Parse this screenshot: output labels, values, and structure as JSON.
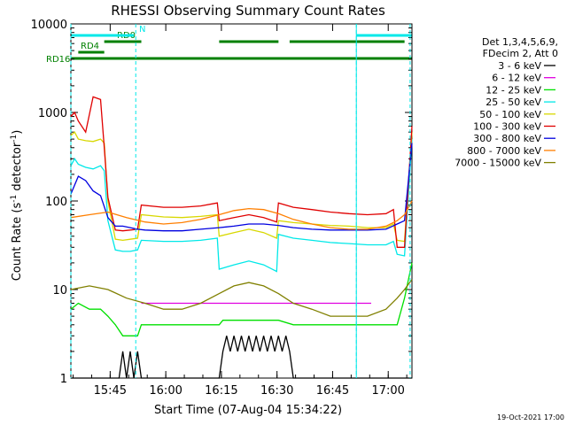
{
  "chart_data": {
    "type": "line",
    "title": "RHESSI Observing Summary Count Rates",
    "xlabel": "Start Time (07-Aug-04 15:34:22)",
    "ylabel": "Count Rate (s⁻¹ detector⁻¹)",
    "ylabel_parts": [
      "Count Rate (s",
      "-1",
      " detector",
      "-1",
      ")"
    ],
    "yscale": "log",
    "ylim": [
      1,
      10000
    ],
    "xlim_minutes": [
      0,
      92
    ],
    "y_ticks": [
      {
        "value": 1,
        "label": "1"
      },
      {
        "value": 10,
        "label": "10"
      },
      {
        "value": 100,
        "label": "100"
      },
      {
        "value": 1000,
        "label": "1000"
      },
      {
        "value": 10000,
        "label": "10000"
      }
    ],
    "x_ticks": [
      {
        "minute": 10.6,
        "label": "15:45"
      },
      {
        "minute": 25.6,
        "label": "16:00"
      },
      {
        "minute": 40.6,
        "label": "16:15"
      },
      {
        "minute": 55.6,
        "label": "16:30"
      },
      {
        "minute": 70.6,
        "label": "16:45"
      },
      {
        "minute": 85.6,
        "label": "17:00"
      }
    ],
    "legend_header": [
      "Det 1,3,4,5,6,9,",
      "FDecim 2, Att 0"
    ],
    "legend_placement": "right",
    "series": [
      {
        "name": "3 - 6 keV",
        "color": "#000000",
        "x": [
          0,
          13,
          14,
          15,
          16,
          17,
          18,
          19,
          20,
          40,
          41,
          42,
          43,
          44,
          45,
          46,
          47,
          48,
          49,
          50,
          51,
          52,
          53,
          54,
          55,
          56,
          57,
          58,
          59,
          60,
          92
        ],
        "y": [
          1,
          1,
          2,
          1,
          2,
          1,
          2,
          1,
          1,
          1,
          2,
          3,
          2,
          3,
          2,
          3,
          2,
          3,
          2,
          3,
          2,
          3,
          2,
          3,
          2,
          3,
          2,
          3,
          2,
          1,
          1
        ]
      },
      {
        "name": "6 - 12 keV",
        "color": "#e000e0",
        "x": [
          19,
          30,
          40,
          48,
          56,
          64,
          72,
          81
        ],
        "y": [
          7,
          7,
          7,
          7,
          7,
          7,
          7,
          7
        ]
      },
      {
        "name": "12 - 25 keV",
        "color": "#00e000",
        "x": [
          0,
          2,
          5,
          8,
          10,
          12,
          14,
          18,
          19,
          25,
          30,
          40,
          41,
          48,
          55,
          56,
          60,
          65,
          72,
          80,
          88,
          90,
          92
        ],
        "y": [
          6,
          7,
          6,
          6,
          5,
          4,
          3,
          3,
          4,
          4,
          4,
          4,
          4.5,
          4.5,
          4.5,
          4.5,
          4,
          4,
          4,
          4,
          4,
          8,
          20
        ]
      },
      {
        "name": "25 - 50 keV",
        "color": "#00e8e8",
        "x": [
          0,
          1,
          2,
          4,
          6,
          8,
          9,
          10,
          12,
          14,
          16,
          18,
          19,
          25,
          30,
          35,
          39.5,
          40,
          44,
          48,
          52,
          55.5,
          56,
          60,
          65,
          70,
          75,
          80,
          85,
          87,
          88,
          90,
          92
        ],
        "y": [
          250,
          300,
          260,
          240,
          230,
          250,
          220,
          60,
          28,
          27,
          27,
          28,
          36,
          35,
          35,
          36,
          38,
          17,
          19,
          21,
          19,
          16,
          42,
          38,
          36,
          34,
          33,
          32,
          32,
          35,
          25,
          24,
          500
        ]
      },
      {
        "name": "50 - 100 keV",
        "color": "#d8d800",
        "x": [
          0,
          1,
          2,
          4,
          6,
          8,
          9,
          10,
          12,
          14,
          16,
          18,
          19,
          25,
          30,
          35,
          39.5,
          40,
          44,
          48,
          52,
          55.5,
          56,
          60,
          65,
          70,
          75,
          80,
          85,
          87,
          88,
          90,
          92
        ],
        "y": [
          550,
          600,
          500,
          480,
          470,
          500,
          450,
          100,
          37,
          36,
          37,
          38,
          70,
          66,
          65,
          67,
          70,
          40,
          44,
          48,
          44,
          38,
          60,
          57,
          55,
          53,
          52,
          50,
          50,
          55,
          36,
          35,
          600
        ]
      },
      {
        "name": "100 - 300 keV",
        "color": "#e00000",
        "x": [
          0,
          1,
          2,
          4,
          6,
          8,
          9,
          10,
          12,
          14,
          16,
          18,
          19,
          25,
          30,
          35,
          39.5,
          40,
          44,
          48,
          52,
          55.5,
          56,
          60,
          65,
          70,
          75,
          80,
          85,
          87,
          88,
          90,
          92
        ],
        "y": [
          900,
          1000,
          800,
          600,
          1500,
          1400,
          400,
          110,
          47,
          46,
          47,
          48,
          90,
          85,
          85,
          88,
          95,
          60,
          65,
          70,
          65,
          58,
          95,
          85,
          80,
          75,
          72,
          70,
          72,
          80,
          30,
          30,
          700
        ]
      },
      {
        "name": "300 - 800 keV",
        "color": "#0000e0",
        "x": [
          0,
          2,
          4,
          6,
          8,
          10,
          12,
          14,
          16,
          18,
          20,
          25,
          30,
          35,
          40,
          44,
          48,
          52,
          56,
          60,
          65,
          70,
          75,
          80,
          85,
          88,
          90,
          92
        ],
        "y": [
          120,
          190,
          170,
          130,
          115,
          65,
          52,
          52,
          50,
          48,
          47,
          46,
          46,
          48,
          50,
          52,
          55,
          55,
          53,
          50,
          48,
          47,
          47,
          47,
          48,
          55,
          60,
          450
        ]
      },
      {
        "name": "800 - 7000 keV",
        "color": "#ff7f00",
        "x": [
          0,
          5,
          10,
          15,
          20,
          25,
          30,
          35,
          40,
          44,
          48,
          52,
          56,
          60,
          65,
          70,
          75,
          80,
          85,
          88,
          90,
          92
        ],
        "y": [
          65,
          70,
          75,
          65,
          58,
          55,
          57,
          62,
          70,
          78,
          82,
          80,
          72,
          62,
          55,
          50,
          48,
          48,
          52,
          60,
          70,
          100
        ]
      },
      {
        "name": "7000 - 15000 keV",
        "color": "#808000",
        "x": [
          0,
          5,
          10,
          15,
          20,
          25,
          30,
          35,
          40,
          44,
          48,
          52,
          56,
          60,
          65,
          70,
          75,
          80,
          85,
          88,
          90,
          92
        ],
        "y": [
          10,
          11,
          10,
          8,
          7,
          6,
          6,
          7,
          9,
          11,
          12,
          11,
          9,
          7,
          6,
          5,
          5,
          5,
          6,
          8,
          10,
          13
        ]
      }
    ],
    "flags": [
      {
        "label": "RD16",
        "color": "#008000",
        "x_label_pos": -10,
        "segments": [
          [
            0,
            92
          ]
        ],
        "row": "rd16"
      },
      {
        "label": "RD4",
        "color": "#008000",
        "segments": [
          [
            2,
            9
          ]
        ],
        "row": "rd4"
      },
      {
        "label": "RD0",
        "color": "#008000",
        "segments": [
          [
            9,
            19
          ],
          [
            40,
            56
          ],
          [
            59,
            90
          ]
        ],
        "row": "rd0"
      },
      {
        "label": "N",
        "color": "#00e8e8",
        "segments": [
          [
            0,
            17
          ],
          [
            77,
            92
          ]
        ],
        "row": "n"
      }
    ],
    "night_markers_minutes": [
      0,
      17.5,
      77,
      91.5
    ],
    "vertical_lines_minutes": [
      77
    ]
  },
  "timestamp": "19-Oct-2021 17:00"
}
